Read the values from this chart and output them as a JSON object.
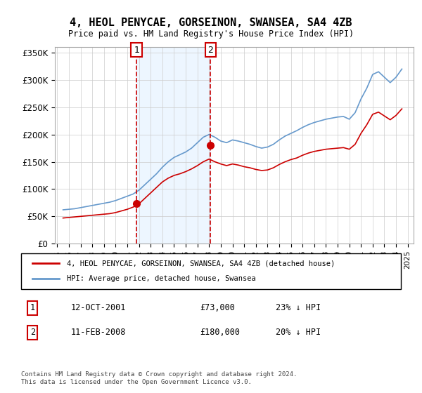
{
  "title": "4, HEOL PENYCAE, GORSEINON, SWANSEA, SA4 4ZB",
  "subtitle": "Price paid vs. HM Land Registry's House Price Index (HPI)",
  "legend_line1": "4, HEOL PENYCAE, GORSEINON, SWANSEA, SA4 4ZB (detached house)",
  "legend_line2": "HPI: Average price, detached house, Swansea",
  "transaction1_label": "1",
  "transaction1_date": "12-OCT-2001",
  "transaction1_price": "£73,000",
  "transaction1_hpi": "23% ↓ HPI",
  "transaction1_year": 2001.79,
  "transaction1_value": 73000,
  "transaction2_label": "2",
  "transaction2_date": "11-FEB-2008",
  "transaction2_price": "£180,000",
  "transaction2_hpi": "20% ↓ HPI",
  "transaction2_year": 2008.12,
  "transaction2_value": 180000,
  "footer": "Contains HM Land Registry data © Crown copyright and database right 2024.\nThis data is licensed under the Open Government Licence v3.0.",
  "red_color": "#cc0000",
  "blue_color": "#6699cc",
  "shade_color": "#ddeeff",
  "ylim": [
    0,
    360000
  ],
  "yticks": [
    0,
    50000,
    100000,
    150000,
    200000,
    250000,
    300000,
    350000
  ],
  "ytick_labels": [
    "£0",
    "£50K",
    "£100K",
    "£150K",
    "£200K",
    "£250K",
    "£300K",
    "£350K"
  ],
  "hpi_years": [
    1995.5,
    1996.0,
    1996.5,
    1997.0,
    1997.5,
    1998.0,
    1998.5,
    1999.0,
    1999.5,
    2000.0,
    2000.5,
    2001.0,
    2001.5,
    2002.0,
    2002.5,
    2003.0,
    2003.5,
    2004.0,
    2004.5,
    2005.0,
    2005.5,
    2006.0,
    2006.5,
    2007.0,
    2007.5,
    2008.0,
    2008.5,
    2009.0,
    2009.5,
    2010.0,
    2010.5,
    2011.0,
    2011.5,
    2012.0,
    2012.5,
    2013.0,
    2013.5,
    2014.0,
    2014.5,
    2015.0,
    2015.5,
    2016.0,
    2016.5,
    2017.0,
    2017.5,
    2018.0,
    2018.5,
    2019.0,
    2019.5,
    2020.0,
    2020.5,
    2021.0,
    2021.5,
    2022.0,
    2022.5,
    2023.0,
    2023.5,
    2024.0,
    2024.5
  ],
  "hpi_values": [
    62000,
    63000,
    64000,
    66000,
    68000,
    70000,
    72000,
    74000,
    76000,
    79000,
    83000,
    87000,
    91000,
    98000,
    108000,
    118000,
    128000,
    140000,
    150000,
    158000,
    163000,
    168000,
    175000,
    185000,
    195000,
    200000,
    195000,
    188000,
    185000,
    190000,
    188000,
    185000,
    182000,
    178000,
    175000,
    177000,
    182000,
    190000,
    197000,
    202000,
    207000,
    213000,
    218000,
    222000,
    225000,
    228000,
    230000,
    232000,
    233000,
    228000,
    240000,
    265000,
    285000,
    310000,
    315000,
    305000,
    295000,
    305000,
    320000
  ],
  "red_years": [
    1995.5,
    1996.0,
    1996.5,
    1997.0,
    1997.5,
    1998.0,
    1998.5,
    1999.0,
    1999.5,
    2000.0,
    2000.5,
    2001.0,
    2001.5,
    2002.0,
    2002.5,
    2003.0,
    2003.5,
    2004.0,
    2004.5,
    2005.0,
    2005.5,
    2006.0,
    2006.5,
    2007.0,
    2007.5,
    2008.0,
    2008.5,
    2009.0,
    2009.5,
    2010.0,
    2010.5,
    2011.0,
    2011.5,
    2012.0,
    2012.5,
    2013.0,
    2013.5,
    2014.0,
    2014.5,
    2015.0,
    2015.5,
    2016.0,
    2016.5,
    2017.0,
    2017.5,
    2018.0,
    2018.5,
    2019.0,
    2019.5,
    2020.0,
    2020.5,
    2021.0,
    2021.5,
    2022.0,
    2022.5,
    2023.0,
    2023.5,
    2024.0,
    2024.5
  ],
  "red_values": [
    47000,
    48000,
    49000,
    50000,
    51000,
    52000,
    53000,
    54000,
    55000,
    57000,
    60000,
    63000,
    67000,
    73000,
    83000,
    93000,
    103000,
    113000,
    120000,
    125000,
    128000,
    132000,
    137000,
    143000,
    150000,
    155000,
    150000,
    146000,
    143000,
    146000,
    144000,
    141000,
    139000,
    136000,
    134000,
    135000,
    139000,
    145000,
    150000,
    154000,
    157000,
    162000,
    166000,
    169000,
    171000,
    173000,
    174000,
    175000,
    176000,
    173000,
    182000,
    202000,
    218000,
    237000,
    241000,
    234000,
    227000,
    235000,
    247000
  ]
}
